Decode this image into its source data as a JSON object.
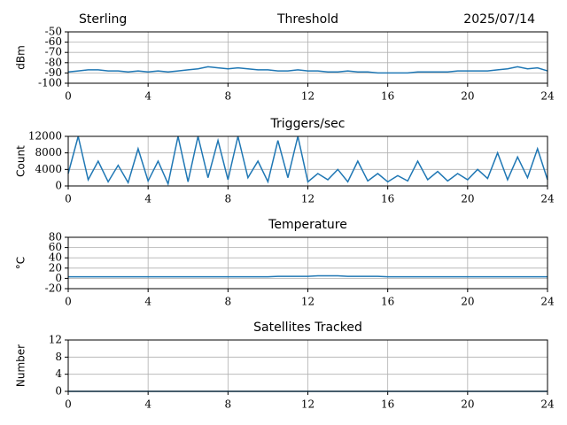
{
  "chart_data": [
    {
      "type": "line",
      "title": "Threshold",
      "annotations": [
        "Sterling",
        "2025/07/14"
      ],
      "ylabel": "dBm",
      "x": [
        0,
        0.5,
        1,
        1.5,
        2,
        2.5,
        3,
        3.5,
        4,
        4.5,
        5,
        5.5,
        6,
        6.5,
        7,
        7.5,
        8,
        8.5,
        9,
        9.5,
        10,
        10.5,
        11,
        11.5,
        12,
        12.5,
        13,
        13.5,
        14,
        14.5,
        15,
        15.5,
        16,
        16.5,
        17,
        17.5,
        18,
        18.5,
        19,
        19.5,
        20,
        20.5,
        21,
        21.5,
        22,
        22.5,
        23,
        23.5,
        24
      ],
      "series": [
        {
          "color": "#1f77b4",
          "values": [
            -89,
            -88,
            -87,
            -87,
            -88,
            -88,
            -89,
            -88,
            -89,
            -88,
            -89,
            -88,
            -87,
            -86,
            -84,
            -85,
            -86,
            -85,
            -86,
            -87,
            -87,
            -88,
            -88,
            -87,
            -88,
            -88,
            -89,
            -89,
            -88,
            -89,
            -89,
            -90,
            -90,
            -90,
            -90,
            -89,
            -89,
            -89,
            -89,
            -88,
            -88,
            -88,
            -88,
            -87,
            -86,
            -84,
            -86,
            -85,
            -88
          ]
        }
      ],
      "xlim": [
        0,
        24
      ],
      "xticks": [
        0,
        4,
        8,
        12,
        16,
        20,
        24
      ],
      "ylim": [
        -100,
        -50
      ],
      "yticks": [
        -100,
        -90,
        -80,
        -70,
        -60,
        -50
      ],
      "grid": true
    },
    {
      "type": "line",
      "title": "Triggers/sec",
      "ylabel": "Count",
      "x": [
        0,
        0.5,
        1,
        1.5,
        2,
        2.5,
        3,
        3.5,
        4,
        4.5,
        5,
        5.5,
        6,
        6.5,
        7,
        7.5,
        8,
        8.5,
        9,
        9.5,
        10,
        10.5,
        11,
        11.5,
        12,
        12.5,
        13,
        13.5,
        14,
        14.5,
        15,
        15.5,
        16,
        16.5,
        17,
        17.5,
        18,
        18.5,
        19,
        19.5,
        20,
        20.5,
        21,
        21.5,
        22,
        22.5,
        23,
        23.5,
        24
      ],
      "series": [
        {
          "color": "#1f77b4",
          "values": [
            3000,
            12000,
            1500,
            6000,
            1000,
            5000,
            800,
            9000,
            1200,
            6000,
            500,
            12000,
            1000,
            12000,
            2000,
            11000,
            1500,
            12000,
            2000,
            6000,
            1000,
            11000,
            2000,
            12000,
            1000,
            3000,
            1500,
            4000,
            1000,
            6000,
            1200,
            3000,
            1000,
            2500,
            1200,
            6000,
            1500,
            3500,
            1200,
            3000,
            1500,
            4000,
            1800,
            8000,
            1500,
            7000,
            2000,
            9000,
            1500
          ]
        }
      ],
      "xlim": [
        0,
        24
      ],
      "xticks": [
        0,
        4,
        8,
        12,
        16,
        20,
        24
      ],
      "ylim": [
        0,
        12000
      ],
      "yticks": [
        0,
        4000,
        8000,
        12000
      ],
      "grid": true
    },
    {
      "type": "line",
      "title": "Temperature",
      "ylabel": "°C",
      "x": [
        0,
        0.5,
        1,
        1.5,
        2,
        2.5,
        3,
        3.5,
        4,
        4.5,
        5,
        5.5,
        6,
        6.5,
        7,
        7.5,
        8,
        8.5,
        9,
        9.5,
        10,
        10.5,
        11,
        11.5,
        12,
        12.5,
        13,
        13.5,
        14,
        14.5,
        15,
        15.5,
        16,
        16.5,
        17,
        17.5,
        18,
        18.5,
        19,
        19.5,
        20,
        20.5,
        21,
        21.5,
        22,
        22.5,
        23,
        23.5,
        24
      ],
      "series": [
        {
          "color": "#1f77b4",
          "values": [
            3,
            3,
            3,
            3,
            3,
            3,
            3,
            3,
            3,
            3,
            3,
            3,
            3,
            3,
            3,
            3,
            3,
            3,
            3,
            3,
            3,
            4,
            4,
            4,
            4,
            5,
            5,
            5,
            4,
            4,
            4,
            4,
            3,
            3,
            3,
            3,
            3,
            3,
            3,
            3,
            3,
            3,
            3,
            3,
            3,
            3,
            3,
            3,
            3
          ]
        }
      ],
      "xlim": [
        0,
        24
      ],
      "xticks": [
        0,
        4,
        8,
        12,
        16,
        20,
        24
      ],
      "ylim": [
        -20,
        80
      ],
      "yticks": [
        -20,
        0,
        20,
        40,
        60,
        80
      ],
      "grid": true
    },
    {
      "type": "line",
      "title": "Satellites Tracked",
      "ylabel": "Number",
      "x": [
        0,
        0.5,
        1,
        1.5,
        2,
        2.5,
        3,
        3.5,
        4,
        4.5,
        5,
        5.5,
        6,
        6.5,
        7,
        7.5,
        8,
        8.5,
        9,
        9.5,
        10,
        10.5,
        11,
        11.5,
        12,
        12.5,
        13,
        13.5,
        14,
        14.5,
        15,
        15.5,
        16,
        16.5,
        17,
        17.5,
        18,
        18.5,
        19,
        19.5,
        20,
        20.5,
        21,
        21.5,
        22,
        22.5,
        23,
        23.5,
        24
      ],
      "series": [
        {
          "color": "#1f77b4",
          "values": [
            0,
            0,
            0,
            0,
            0,
            0,
            0,
            0,
            0,
            0,
            0,
            0,
            0,
            0,
            0,
            0,
            0,
            0,
            0,
            0,
            0,
            0,
            0,
            0,
            0,
            0,
            0,
            0,
            0,
            0,
            0,
            0,
            0,
            0,
            0,
            0,
            0,
            0,
            0,
            0,
            0,
            0,
            0,
            0,
            0,
            0,
            0,
            0,
            0
          ]
        }
      ],
      "xlim": [
        0,
        24
      ],
      "xticks": [
        0,
        4,
        8,
        12,
        16,
        20,
        24
      ],
      "ylim": [
        0,
        12
      ],
      "yticks": [
        0,
        4,
        8,
        12
      ],
      "grid": true
    }
  ]
}
